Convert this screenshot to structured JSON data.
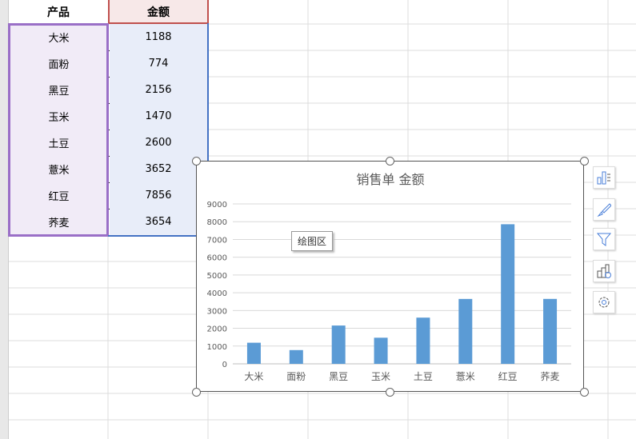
{
  "table": {
    "headers": [
      "产品",
      "金额"
    ],
    "rows": [
      [
        "大米",
        "1188"
      ],
      [
        "面粉",
        "774"
      ],
      [
        "黑豆",
        "2156"
      ],
      [
        "玉米",
        "1470"
      ],
      [
        "土豆",
        "2600"
      ],
      [
        "薏米",
        "3652"
      ],
      [
        "红豆",
        "7856"
      ],
      [
        "荞麦",
        "3654"
      ]
    ]
  },
  "tooltip": "绘图区",
  "side_buttons": [
    "chart-elements-icon",
    "chart-style-icon",
    "filter-icon",
    "chart-type-icon",
    "settings-icon"
  ],
  "chart_data": {
    "type": "bar",
    "title": "销售单 金额",
    "categories": [
      "大米",
      "面粉",
      "黑豆",
      "玉米",
      "土豆",
      "薏米",
      "红豆",
      "荞麦"
    ],
    "values": [
      1188,
      774,
      2156,
      1470,
      2600,
      3652,
      7856,
      3654
    ],
    "ylim": [
      0,
      9000
    ],
    "yticks": [
      "0",
      "1000",
      "2000",
      "3000",
      "4000",
      "5000",
      "6000",
      "7000",
      "8000",
      "9000"
    ],
    "grid": true,
    "bar_color": "#5b9bd5"
  }
}
